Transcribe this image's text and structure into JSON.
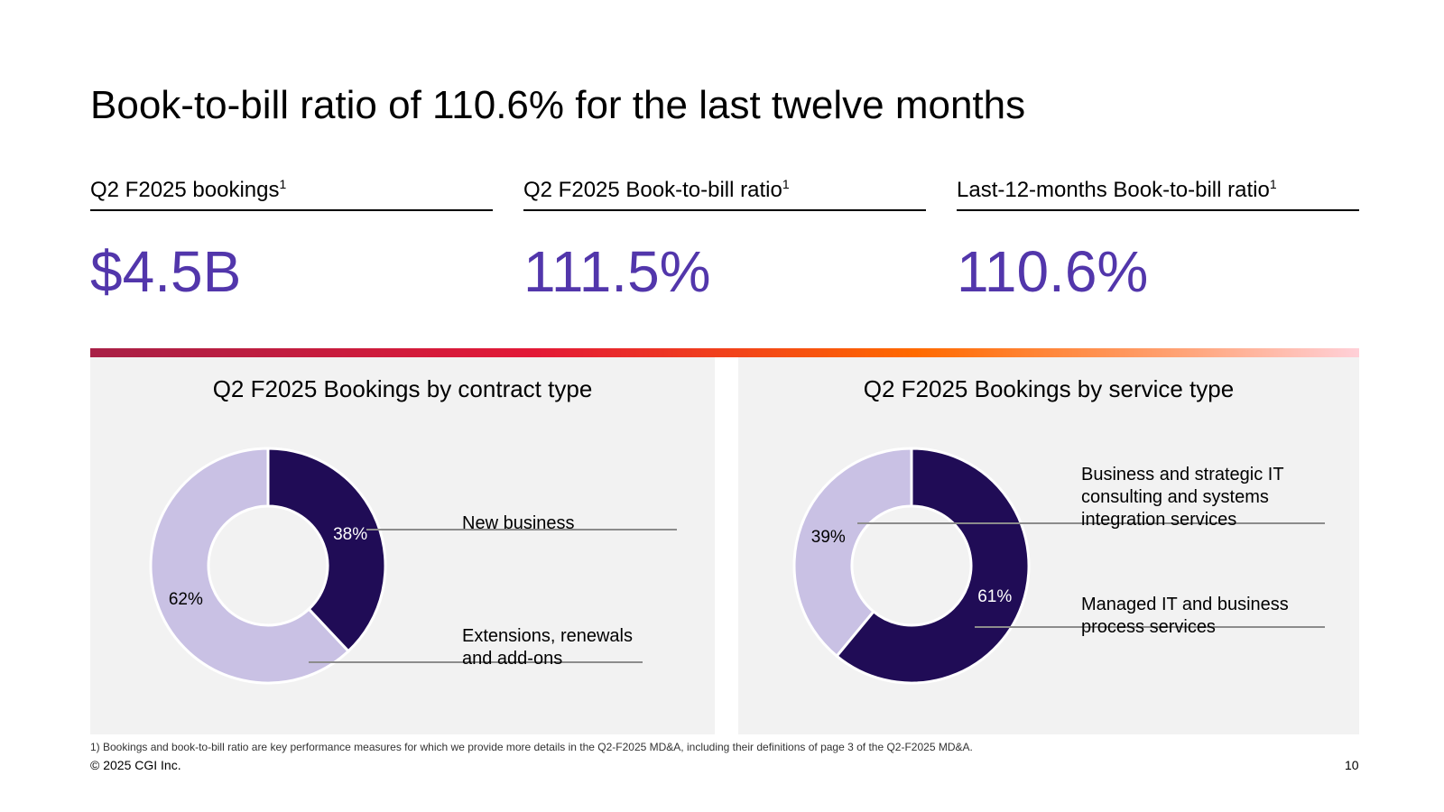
{
  "title": "Book-to-bill ratio of 110.6% for the last twelve months",
  "kpis": [
    {
      "label": "Q2 F2025 bookings",
      "sup": "1",
      "value": "$4.5B"
    },
    {
      "label": "Q2 F2025 Book-to-bill ratio",
      "sup": "1",
      "value": "111.5%"
    },
    {
      "label": "Last-12-months Book-to-bill ratio",
      "sup": "1",
      "value": "110.6%"
    }
  ],
  "colors": {
    "accent": "#5236ab",
    "dark_segment": "#200c56",
    "light_segment": "#c9c1e4",
    "panel_bg": "#f2f2f2"
  },
  "chart_data": [
    {
      "type": "pie",
      "title": "Q2 F2025 Bookings by contract type",
      "categories": [
        "New business",
        "Extensions, renewals and add-ons"
      ],
      "values": [
        38,
        62
      ],
      "labels": [
        "38%",
        "62%"
      ]
    },
    {
      "type": "pie",
      "title": "Q2 F2025 Bookings by service type",
      "categories": [
        "Business and strategic IT consulting and systems integration services",
        "Managed IT and business process services"
      ],
      "values": [
        39,
        61
      ],
      "labels": [
        "39%",
        "61%"
      ]
    }
  ],
  "legends": {
    "contract": [
      [
        "New business"
      ],
      [
        "Extensions, renewals",
        "and add-ons"
      ]
    ],
    "service": [
      [
        "Business and strategic IT",
        "consulting and systems",
        "integration services"
      ],
      [
        "Managed IT and business",
        "process services"
      ]
    ]
  },
  "footnote": "1) Bookings and book-to-bill ratio are key performance measures for which we provide more details in the Q2-F2025 MD&A, including their definitions of page 3 of the Q2-F2025 MD&A.",
  "copyright": "© 2025 CGI Inc.",
  "page_number": "10"
}
